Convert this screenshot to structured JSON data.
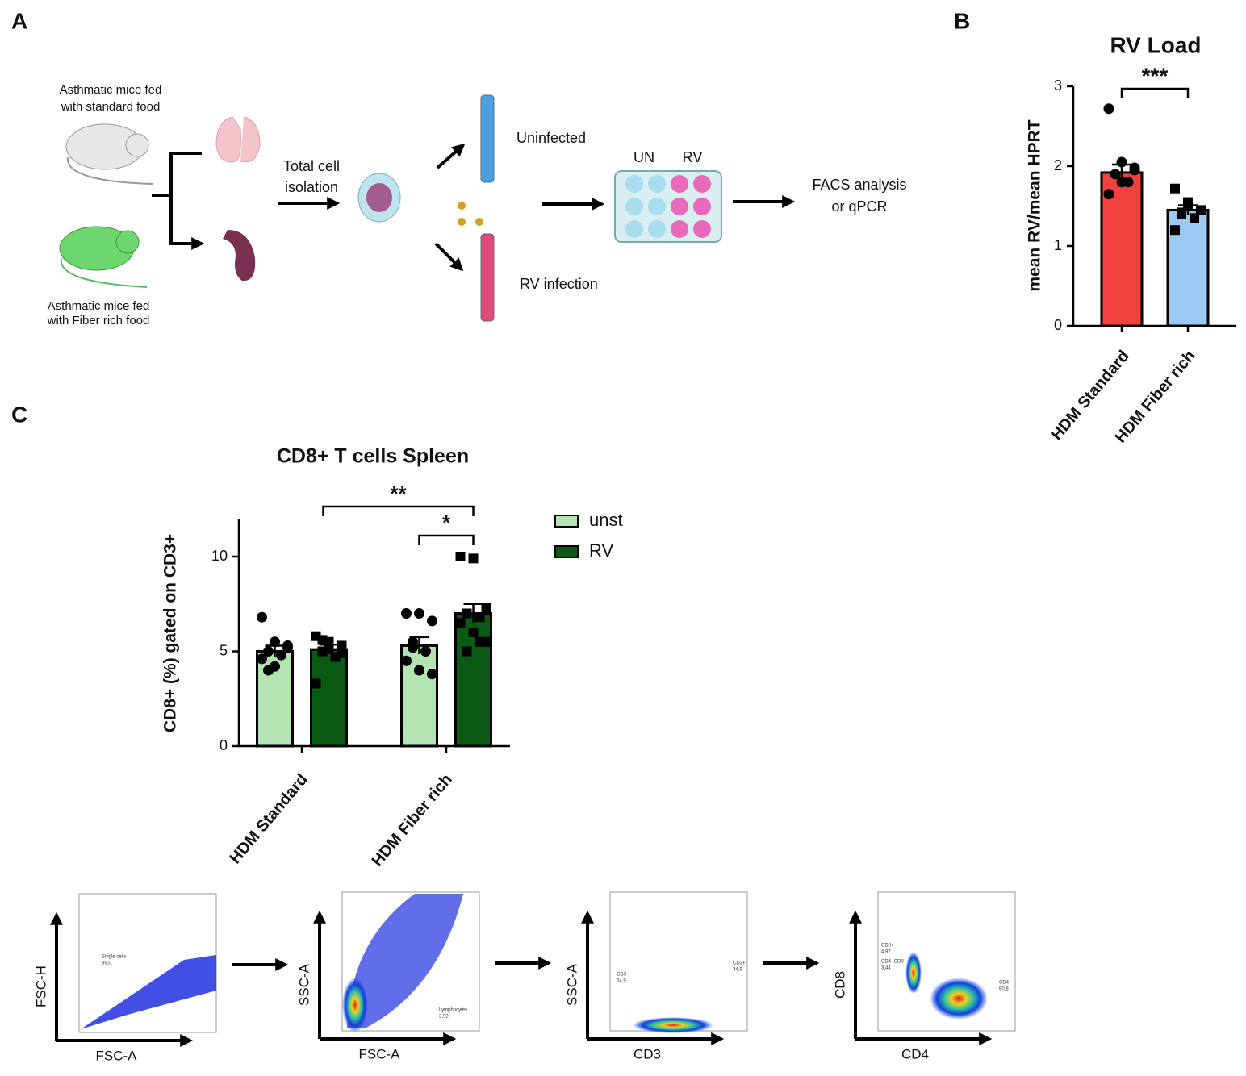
{
  "panel_labels": [
    "A",
    "B",
    "C"
  ],
  "diagram": {
    "mouse_standard": [
      "Asthmatic mice fed",
      "with standard food"
    ],
    "mouse_fiber": [
      "Asthmatic mice fed",
      "with Fiber rich food"
    ],
    "isolation": [
      "Total cell",
      "isolation"
    ],
    "uninfected": "Uninfected",
    "infection": "RV infection",
    "plate_un": "UN",
    "plate_rv": "RV",
    "readout": [
      "FACS analysis",
      "or qPCR"
    ]
  },
  "chart_data": [
    {
      "type": "bar",
      "title": "RV Load",
      "y_label": "mean RV/mean HPRT",
      "categories": [
        "HDM Standard",
        "HDM Fiber rich"
      ],
      "values": [
        1.92,
        1.45
      ],
      "errors": [
        0.1,
        0.06
      ],
      "colors": [
        "#f24141",
        "#9cc8f4"
      ],
      "markers": [
        "circle",
        "square"
      ],
      "points": [
        [
          2.72,
          2.05,
          1.98,
          1.9,
          1.8,
          1.65,
          1.8,
          1.95
        ],
        [
          1.72,
          1.55,
          1.45,
          1.4,
          1.35,
          1.2,
          1.5,
          1.45,
          1.42
        ]
      ],
      "ylim": [
        0,
        3
      ],
      "yticks": [
        0,
        1,
        2,
        3
      ],
      "annotations": [
        "***"
      ]
    },
    {
      "type": "grouped_bar",
      "title": "CD8+ T cells Spleen",
      "y_label": "CD8+ (%) gated on CD3+",
      "categories": [
        "HDM Standard",
        "HDM Fiber rich"
      ],
      "series": [
        {
          "name": "unst",
          "color": "#b4e4b4",
          "marker": "circle",
          "values": [
            5.0,
            5.3
          ],
          "errors": [
            0.3,
            0.45
          ],
          "points": [
            [
              6.8,
              5.5,
              5.2,
              5.0,
              4.8,
              4.6,
              4.2,
              5.3,
              4.0
            ],
            [
              7.0,
              7.0,
              6.6,
              5.5,
              5.0,
              4.5,
              4.0,
              3.8,
              5.2
            ]
          ]
        },
        {
          "name": "RV",
          "color": "#0b5a14",
          "marker": "square",
          "values": [
            5.1,
            7.0
          ],
          "errors": [
            0.25,
            0.5
          ],
          "points": [
            [
              5.8,
              5.5,
              5.3,
              5.0,
              4.7,
              3.3,
              5.2,
              4.9,
              5.6
            ],
            [
              10.0,
              9.9,
              7.3,
              7.0,
              6.8,
              6.5,
              6.0,
              5.5,
              5.0,
              5.5
            ]
          ]
        }
      ],
      "ylim": [
        0,
        12
      ],
      "yticks": [
        0,
        5,
        10
      ],
      "legend": "right",
      "annotations": [
        "**",
        "*"
      ]
    }
  ],
  "facs": [
    {
      "x_label": "FSC-A",
      "y_label": "FSC-H",
      "gates": [
        "Single cells",
        "89,0"
      ]
    },
    {
      "x_label": "FSC-A",
      "y_label": "SSC-A",
      "gates": [
        "Lymphocytes",
        "2,92"
      ]
    },
    {
      "x_label": "CD3",
      "y_label": "SSC-A",
      "gates": [
        "CD3-",
        "64,9",
        "CD3+",
        "34,9"
      ]
    },
    {
      "x_label": "CD4",
      "y_label": "CD8",
      "gates": [
        "CD8+",
        "4,97",
        "CD4- CD8-",
        "3,44",
        "CD4+",
        "90,8"
      ]
    }
  ]
}
